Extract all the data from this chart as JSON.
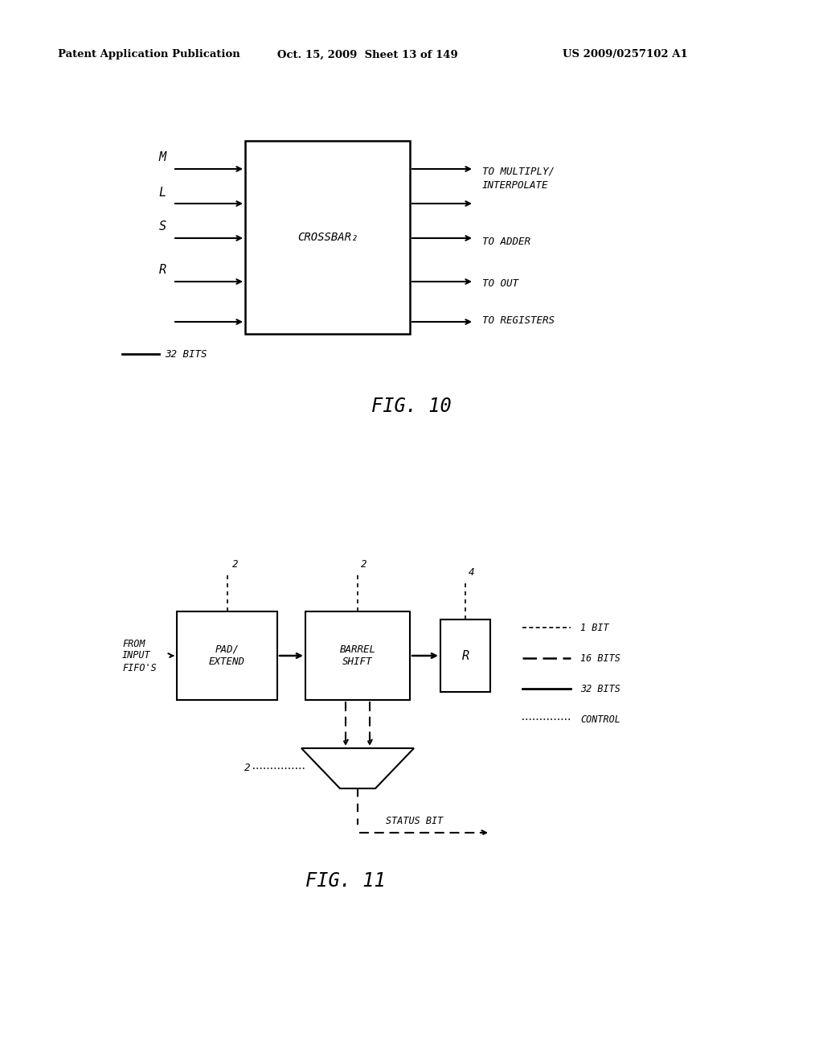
{
  "bg_color": "#ffffff",
  "header_text": "Patent Application Publication",
  "header_date": "Oct. 15, 2009  Sheet 13 of 149",
  "header_patent": "US 2009/0257102 A1",
  "fig10_title": "FIG. 10",
  "fig11_title": "FIG. 11",
  "fig10_box_label": "CROSSBAR₂",
  "fig10_inputs": [
    "M",
    "L",
    "S",
    "R"
  ],
  "fig10_out1": "TO MULTIPLY/\nINTERPOLATE",
  "fig10_out2": "TO ADDER",
  "fig10_out3": "TO OUT",
  "fig10_out4": "TO REGISTERS",
  "fig10_legend_label": "32 BITS",
  "fig11_pad_label": "PAD/\nEXTEND",
  "fig11_bs_label": "BARREL\nSHIFT",
  "fig11_r_label": "R",
  "fig11_from_label": "FROM\nINPUT\nFIFO'S",
  "fig11_status_label": "STATUS BIT",
  "leg1": "1 BIT",
  "leg2": "16 BITS",
  "leg3": "32 BITS",
  "leg4": "CONTROL"
}
